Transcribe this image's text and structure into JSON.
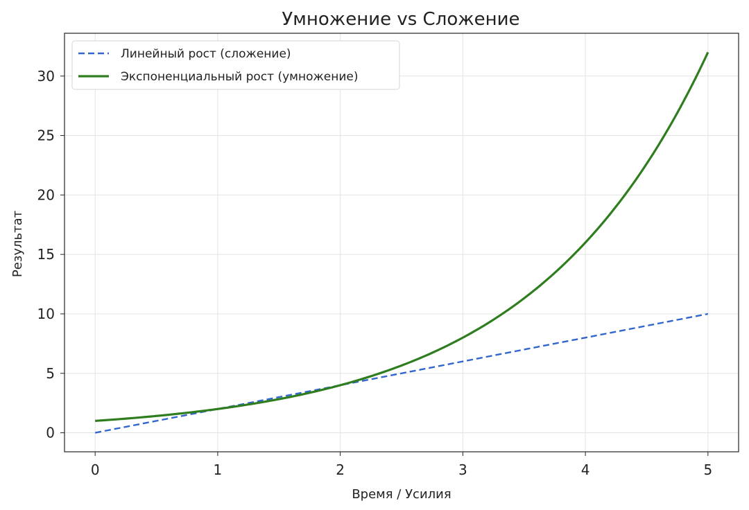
{
  "chart_data": {
    "type": "line",
    "title": "Умножение vs Сложение",
    "xlabel": "Время / Усилия",
    "ylabel": "Результат",
    "xlim": [
      -0.25,
      5.25
    ],
    "ylim": [
      -1.6,
      33.6
    ],
    "xticks": [
      0,
      1,
      2,
      3,
      4,
      5
    ],
    "yticks": [
      0,
      5,
      10,
      15,
      20,
      25,
      30
    ],
    "grid": true,
    "legend_position": "top-left",
    "series": [
      {
        "name": "Линейный рост (сложение)",
        "color": "#3366cc",
        "style": "dashed",
        "x": [
          0,
          1,
          2,
          3,
          4,
          5
        ],
        "y": [
          0,
          2,
          4,
          6,
          8,
          10
        ]
      },
      {
        "name": "Экспоненциальный рост (умножение)",
        "color": "#2e7d1f",
        "style": "solid",
        "x": [
          0,
          0.25,
          0.5,
          0.75,
          1,
          1.25,
          1.5,
          1.75,
          2,
          2.25,
          2.5,
          2.75,
          3,
          3.25,
          3.5,
          3.75,
          4,
          4.25,
          4.5,
          4.75,
          5
        ],
        "y": [
          1,
          1.19,
          1.41,
          1.68,
          2,
          2.38,
          2.83,
          3.36,
          4,
          4.76,
          5.66,
          6.73,
          8,
          9.51,
          11.31,
          13.45,
          16,
          19.03,
          22.63,
          26.91,
          32
        ]
      }
    ]
  }
}
